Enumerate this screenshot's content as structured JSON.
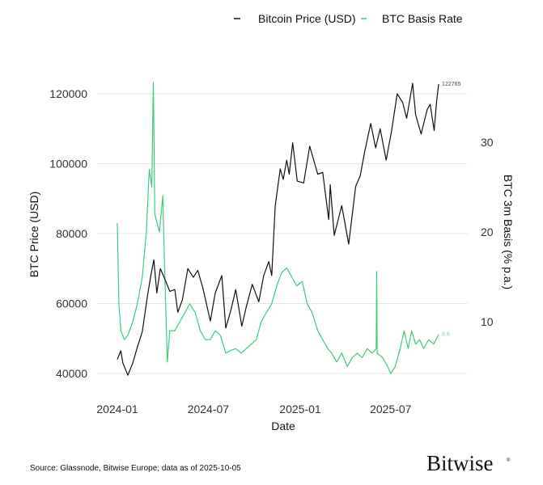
{
  "chart_data": {
    "type": "line",
    "title": "",
    "legend": {
      "position": "top-right",
      "items": [
        "Bitcoin Price (USD)",
        "BTC Basis Rate"
      ]
    },
    "xlabel": "Date",
    "ylabel_left": "BTC Price (USD)",
    "ylabel_right": "BTC 3m Basis (% p.a.)",
    "x_ticks": [
      "2024-01",
      "2024-07",
      "2025-01",
      "2025-07"
    ],
    "y_left_ticks": [
      "40000",
      "60000",
      "80000",
      "100000",
      "120000"
    ],
    "y_right_ticks": [
      "10",
      "20",
      "30"
    ],
    "ylim_left": [
      37000,
      125000
    ],
    "ylim_right": [
      3,
      37.5
    ],
    "grid": true,
    "colors": {
      "price": "#111111",
      "basis": "#3dcc7e",
      "grid": "#e6e6e6"
    },
    "series": [
      {
        "name": "Bitcoin Price (USD)",
        "axis": "left",
        "end_label": "122765",
        "points": [
          [
            "2024-01-01",
            44000
          ],
          [
            "2024-01-08",
            46500
          ],
          [
            "2024-01-12",
            43000
          ],
          [
            "2024-01-22",
            39500
          ],
          [
            "2024-02-01",
            43000
          ],
          [
            "2024-02-10",
            47500
          ],
          [
            "2024-02-20",
            52000
          ],
          [
            "2024-03-01",
            62000
          ],
          [
            "2024-03-08",
            68000
          ],
          [
            "2024-03-14",
            72500
          ],
          [
            "2024-03-20",
            63000
          ],
          [
            "2024-03-27",
            70000
          ],
          [
            "2024-04-05",
            67000
          ],
          [
            "2024-04-15",
            63500
          ],
          [
            "2024-04-25",
            64000
          ],
          [
            "2024-05-01",
            57500
          ],
          [
            "2024-05-10",
            61000
          ],
          [
            "2024-05-21",
            70000
          ],
          [
            "2024-06-01",
            67500
          ],
          [
            "2024-06-10",
            69500
          ],
          [
            "2024-06-20",
            64500
          ],
          [
            "2024-07-05",
            55000
          ],
          [
            "2024-07-15",
            63000
          ],
          [
            "2024-07-28",
            68000
          ],
          [
            "2024-08-05",
            53000
          ],
          [
            "2024-08-15",
            58000
          ],
          [
            "2024-08-25",
            64000
          ],
          [
            "2024-09-06",
            53500
          ],
          [
            "2024-09-15",
            59000
          ],
          [
            "2024-09-27",
            65500
          ],
          [
            "2024-10-10",
            60500
          ],
          [
            "2024-10-20",
            68000
          ],
          [
            "2024-10-30",
            72000
          ],
          [
            "2024-11-05",
            68000
          ],
          [
            "2024-11-12",
            88000
          ],
          [
            "2024-11-22",
            98500
          ],
          [
            "2024-11-28",
            95500
          ],
          [
            "2024-12-05",
            101000
          ],
          [
            "2024-12-10",
            97000
          ],
          [
            "2024-12-17",
            106000
          ],
          [
            "2024-12-26",
            95000
          ],
          [
            "2025-01-08",
            94500
          ],
          [
            "2025-01-20",
            105000
          ],
          [
            "2025-01-27",
            101500
          ],
          [
            "2025-02-05",
            97000
          ],
          [
            "2025-02-15",
            97500
          ],
          [
            "2025-02-27",
            84000
          ],
          [
            "2025-03-02",
            94000
          ],
          [
            "2025-03-10",
            79500
          ],
          [
            "2025-03-25",
            88000
          ],
          [
            "2025-04-08",
            77000
          ],
          [
            "2025-04-22",
            93500
          ],
          [
            "2025-05-01",
            96500
          ],
          [
            "2025-05-10",
            103500
          ],
          [
            "2025-05-22",
            111500
          ],
          [
            "2025-06-01",
            104500
          ],
          [
            "2025-06-10",
            110000
          ],
          [
            "2025-06-22",
            101000
          ],
          [
            "2025-07-03",
            109500
          ],
          [
            "2025-07-14",
            120000
          ],
          [
            "2025-07-25",
            117500
          ],
          [
            "2025-08-02",
            113000
          ],
          [
            "2025-08-14",
            123000
          ],
          [
            "2025-08-20",
            114000
          ],
          [
            "2025-08-31",
            108500
          ],
          [
            "2025-09-12",
            115500
          ],
          [
            "2025-09-18",
            117000
          ],
          [
            "2025-09-26",
            109500
          ],
          [
            "2025-10-01",
            118000
          ],
          [
            "2025-10-05",
            122765
          ]
        ]
      },
      {
        "name": "BTC Basis Rate",
        "axis": "right",
        "end_label": "8.6",
        "points": [
          [
            "2024-01-01",
            21
          ],
          [
            "2024-01-04",
            12
          ],
          [
            "2024-01-08",
            9
          ],
          [
            "2024-01-15",
            8
          ],
          [
            "2024-01-22",
            8.5
          ],
          [
            "2024-02-01",
            10
          ],
          [
            "2024-02-10",
            12
          ],
          [
            "2024-02-20",
            15
          ],
          [
            "2024-02-28",
            20
          ],
          [
            "2024-03-05",
            27
          ],
          [
            "2024-03-10",
            25
          ],
          [
            "2024-03-13",
            36.7
          ],
          [
            "2024-03-16",
            22
          ],
          [
            "2024-03-25",
            20
          ],
          [
            "2024-04-01",
            24
          ],
          [
            "2024-04-05",
            15
          ],
          [
            "2024-04-10",
            5.5
          ],
          [
            "2024-04-15",
            9
          ],
          [
            "2024-04-25",
            9
          ],
          [
            "2024-05-05",
            10
          ],
          [
            "2024-05-15",
            11
          ],
          [
            "2024-05-25",
            12
          ],
          [
            "2024-06-05",
            11
          ],
          [
            "2024-06-15",
            9
          ],
          [
            "2024-06-25",
            8
          ],
          [
            "2024-07-05",
            8
          ],
          [
            "2024-07-15",
            9
          ],
          [
            "2024-07-25",
            8.5
          ],
          [
            "2024-08-05",
            6.5
          ],
          [
            "2024-08-15",
            6.8
          ],
          [
            "2024-08-25",
            7
          ],
          [
            "2024-09-05",
            6.5
          ],
          [
            "2024-09-15",
            7
          ],
          [
            "2024-09-25",
            7.5
          ],
          [
            "2024-10-05",
            8
          ],
          [
            "2024-10-15",
            10
          ],
          [
            "2024-10-25",
            11
          ],
          [
            "2024-11-05",
            12
          ],
          [
            "2024-11-15",
            14
          ],
          [
            "2024-11-25",
            15.5
          ],
          [
            "2024-12-05",
            16
          ],
          [
            "2024-12-15",
            15
          ],
          [
            "2024-12-25",
            14
          ],
          [
            "2025-01-05",
            14.5
          ],
          [
            "2025-01-15",
            12
          ],
          [
            "2025-01-25",
            11
          ],
          [
            "2025-02-05",
            9
          ],
          [
            "2025-02-15",
            8
          ],
          [
            "2025-02-25",
            7
          ],
          [
            "2025-03-05",
            6.5
          ],
          [
            "2025-03-15",
            5.5
          ],
          [
            "2025-03-25",
            6.5
          ],
          [
            "2025-04-05",
            5
          ],
          [
            "2025-04-15",
            6
          ],
          [
            "2025-04-25",
            6.5
          ],
          [
            "2025-05-05",
            6
          ],
          [
            "2025-05-15",
            7
          ],
          [
            "2025-05-25",
            6.5
          ],
          [
            "2025-06-02",
            7
          ],
          [
            "2025-06-03",
            15.6
          ],
          [
            "2025-06-04",
            6.5
          ],
          [
            "2025-06-15",
            6
          ],
          [
            "2025-06-25",
            5
          ],
          [
            "2025-07-01",
            4.2
          ],
          [
            "2025-07-10",
            5
          ],
          [
            "2025-07-20",
            7
          ],
          [
            "2025-07-28",
            9
          ],
          [
            "2025-08-05",
            7
          ],
          [
            "2025-08-12",
            9
          ],
          [
            "2025-08-20",
            7.5
          ],
          [
            "2025-08-28",
            8
          ],
          [
            "2025-09-05",
            7
          ],
          [
            "2025-09-15",
            8
          ],
          [
            "2025-09-25",
            7.5
          ],
          [
            "2025-10-05",
            8.6
          ]
        ]
      }
    ]
  },
  "footer": {
    "source": "Source: Glassnode, Bitwise Europe; data as of 2025-10-05",
    "logo": "Bitwise"
  }
}
